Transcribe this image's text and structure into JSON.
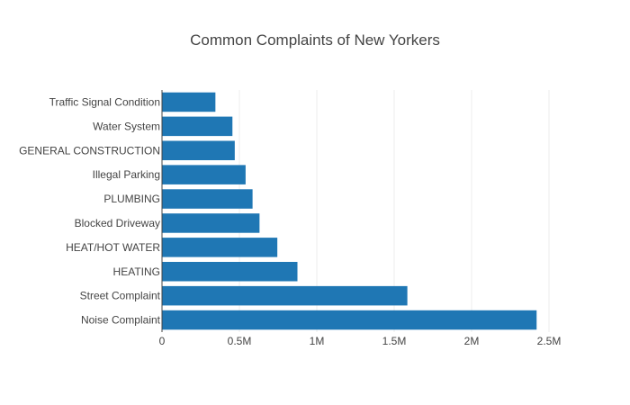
{
  "chart_data": {
    "type": "bar",
    "orientation": "horizontal",
    "title": "Common Complaints of New Yorkers",
    "xlabel": "",
    "ylabel": "",
    "categories": [
      "Noise Complaint",
      "Street Complaint",
      "HEATING",
      "HEAT/HOT WATER",
      "Blocked Driveway",
      "PLUMBING",
      "Illegal Parking",
      "GENERAL CONSTRUCTION",
      "Water System",
      "Traffic Signal Condition"
    ],
    "values": [
      2420000,
      1585000,
      875000,
      745000,
      630000,
      585000,
      540000,
      470000,
      455000,
      345000
    ],
    "xlim": [
      0,
      2500000
    ],
    "xticks": [
      0,
      500000,
      1000000,
      1500000,
      2000000,
      2500000
    ],
    "xtick_labels": [
      "0",
      "0.5M",
      "1M",
      "1.5M",
      "2M",
      "2.5M"
    ],
    "grid": true,
    "legend": "none",
    "bar_color": "#1f77b4"
  }
}
